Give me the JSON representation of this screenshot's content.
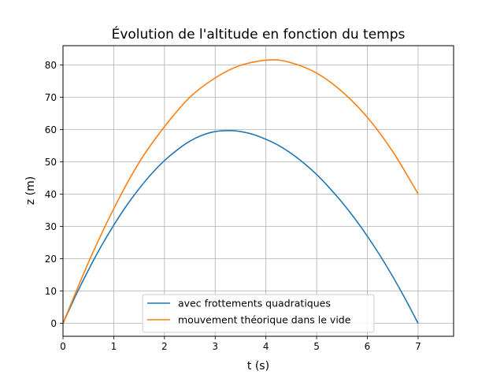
{
  "chart_data": {
    "type": "line",
    "title": "Évolution de l'altitude en fonction du temps",
    "xlabel": "t (s)",
    "ylabel": "z (m)",
    "xlim": [
      0,
      7.7
    ],
    "ylim": [
      -4,
      86
    ],
    "xticks": [
      0,
      1,
      2,
      3,
      4,
      5,
      6,
      7
    ],
    "yticks": [
      0,
      10,
      20,
      30,
      40,
      50,
      60,
      70,
      80
    ],
    "grid": true,
    "legend_position": "lower-center",
    "series": [
      {
        "name": "avec frottements quadratiques",
        "color": "#1f77b4",
        "x": [
          0,
          0.25,
          0.5,
          0.75,
          1.0,
          1.25,
          1.5,
          1.75,
          2.0,
          2.25,
          2.5,
          2.75,
          3.0,
          3.3,
          3.5,
          3.75,
          4.0,
          4.25,
          4.5,
          4.75,
          5.0,
          5.25,
          5.5,
          5.75,
          6.0,
          6.25,
          6.5,
          6.75,
          7.0
        ],
        "y": [
          0,
          8.6,
          16.5,
          23.8,
          30.4,
          36.4,
          41.7,
          46.4,
          50.4,
          53.7,
          56.4,
          58.3,
          59.4,
          59.7,
          59.4,
          58.5,
          57.0,
          55.1,
          52.6,
          49.6,
          46.1,
          42.0,
          37.5,
          32.5,
          27.0,
          21.0,
          14.5,
          7.5,
          0
        ]
      },
      {
        "name": "mouvement théorique dans le vide",
        "color": "#ff7f0e",
        "x": [
          0,
          0.5,
          1.0,
          1.5,
          2.0,
          2.5,
          3.0,
          3.5,
          4.08,
          4.5,
          5.0,
          5.5,
          6.0,
          6.5,
          7.0
        ],
        "y": [
          0,
          18.8,
          35.5,
          49.8,
          60.9,
          70.0,
          76.0,
          79.9,
          81.6,
          80.7,
          77.5,
          71.8,
          63.8,
          53.2,
          40.1
        ]
      }
    ]
  }
}
